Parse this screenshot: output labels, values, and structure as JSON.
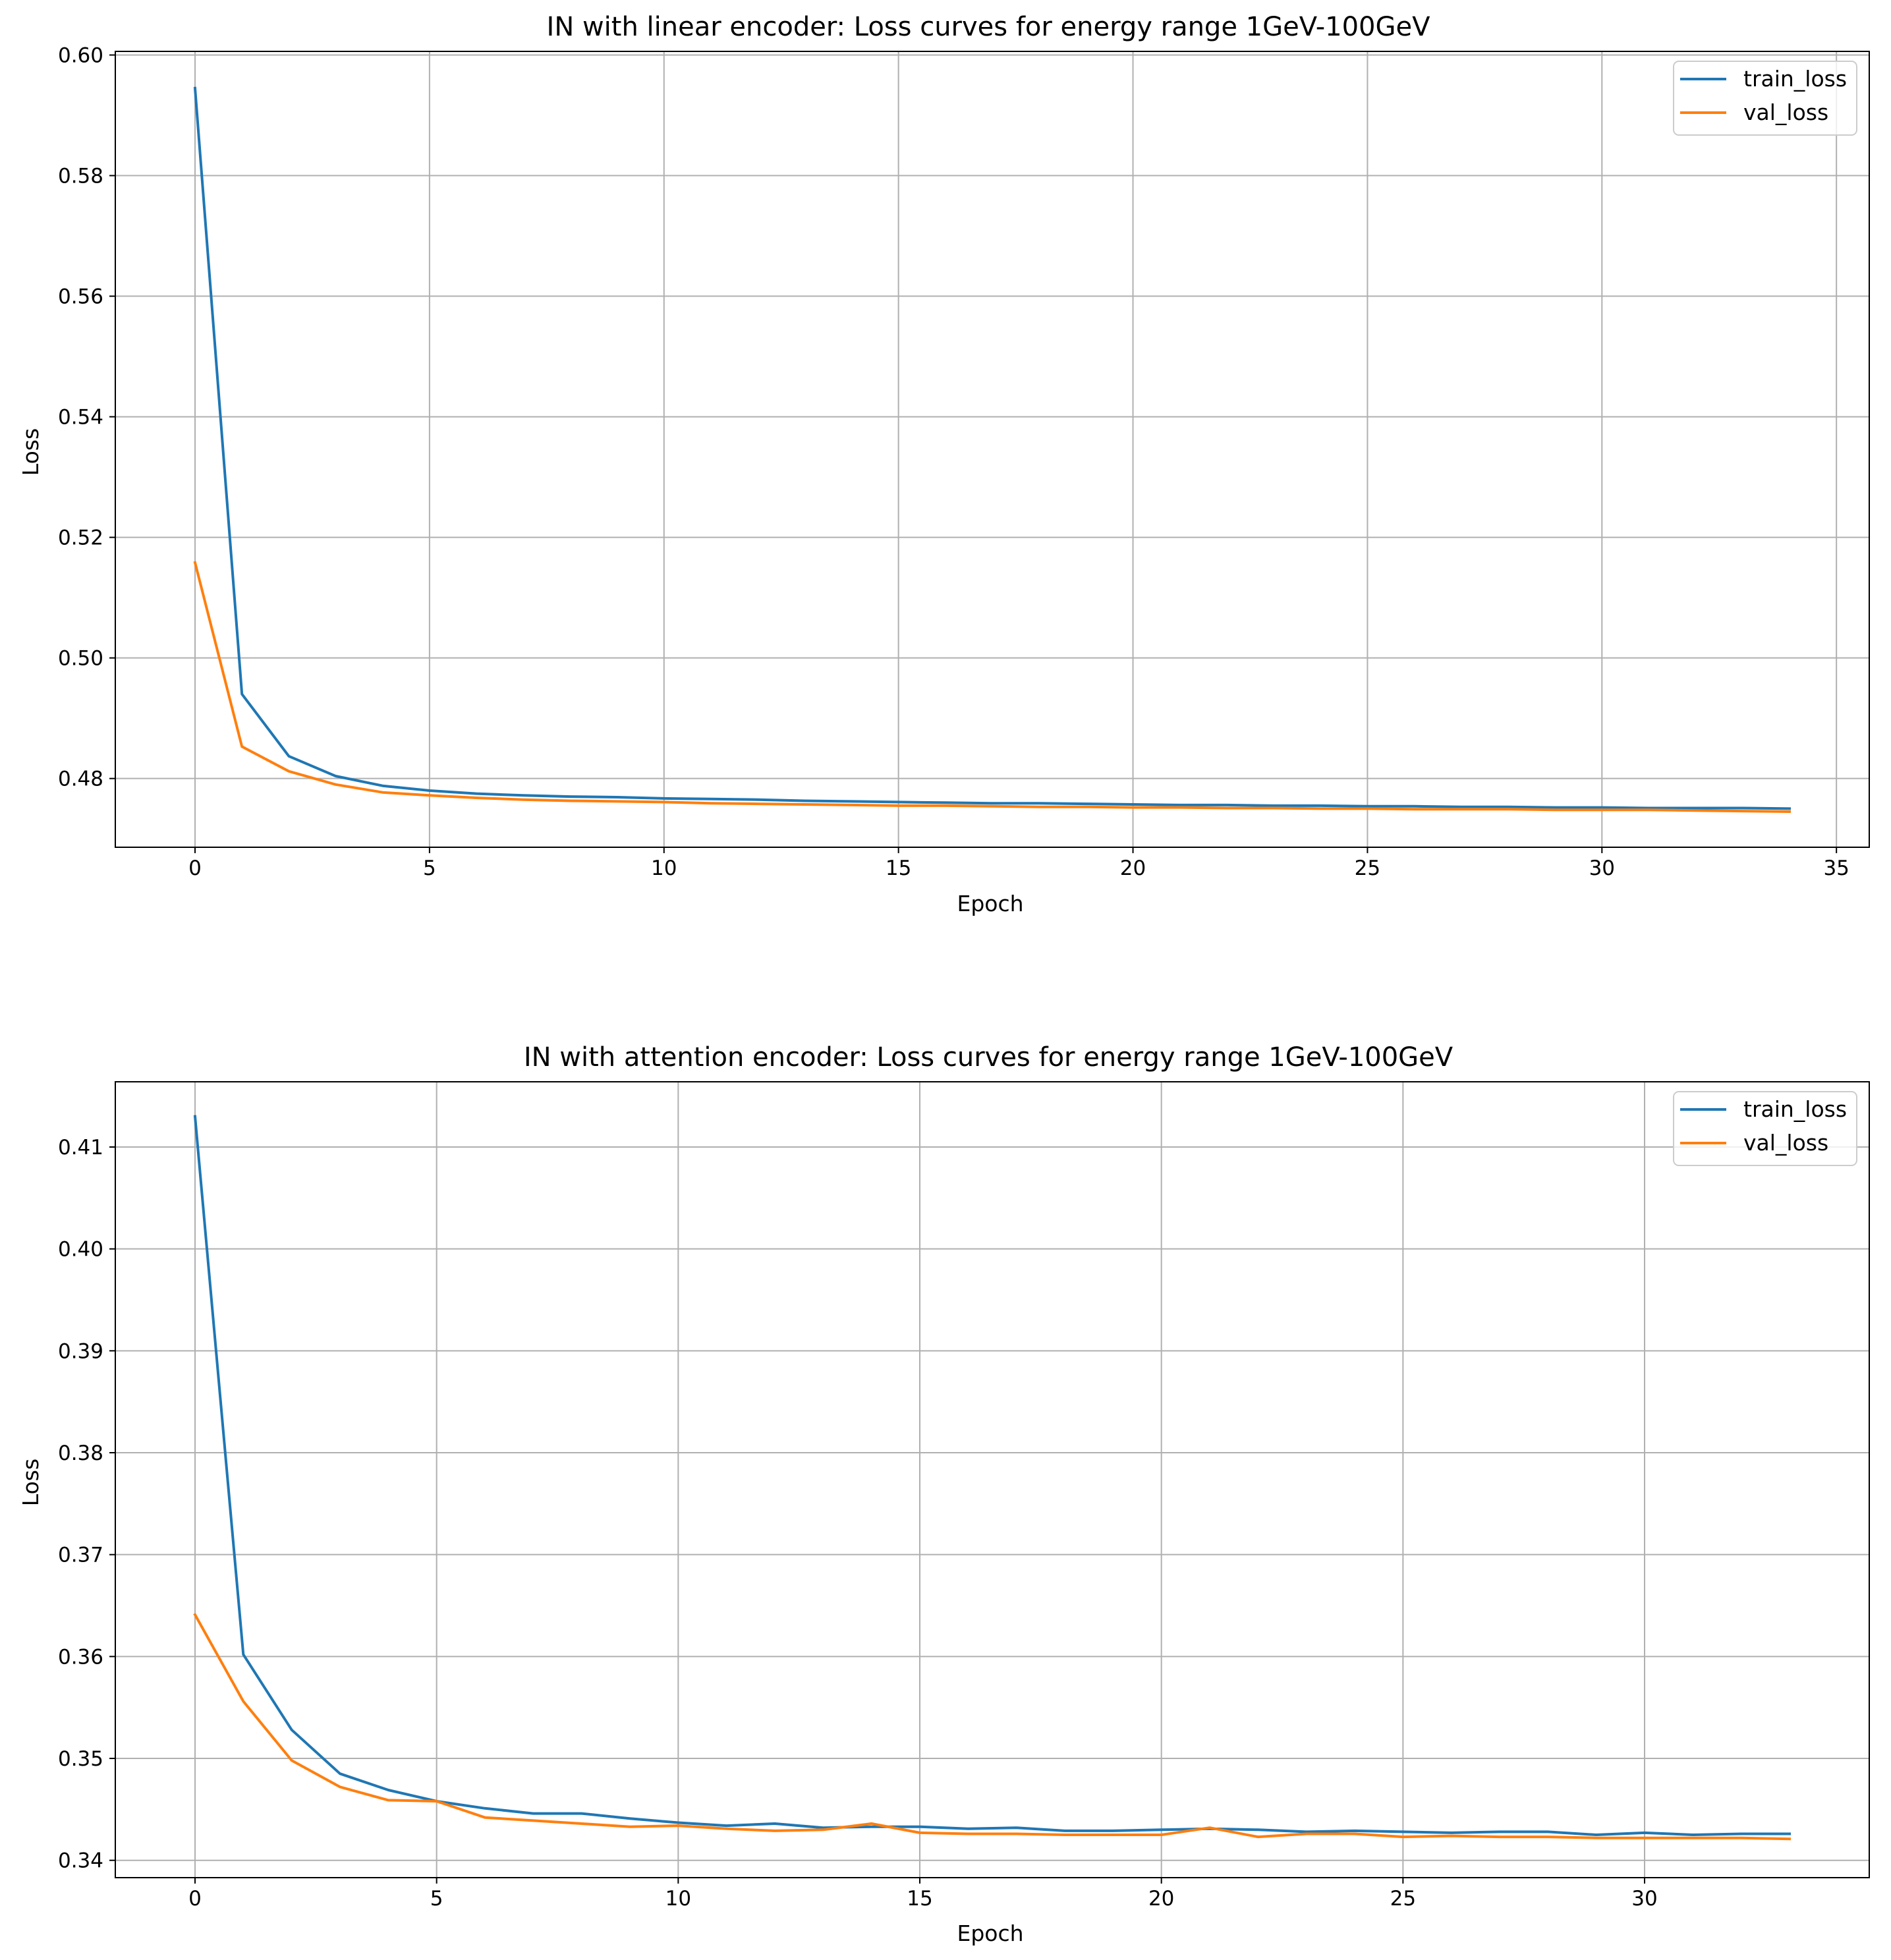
{
  "colors": {
    "train_loss": "#1f77b4",
    "val_loss": "#ff7f0e",
    "grid": "#b0b0b0",
    "legend_border": "#cccccc"
  },
  "chart_data": [
    {
      "type": "line",
      "title": "IN with linear encoder: Loss curves for energy range 1GeV-100GeV",
      "xlabel": "Epoch",
      "ylabel": "Loss",
      "xlim": [
        -1.7,
        35.7
      ],
      "ylim": [
        0.4686,
        0.6006
      ],
      "xticks": [
        0,
        5,
        10,
        15,
        20,
        25,
        30,
        35
      ],
      "xtick_labels": [
        "0",
        "5",
        "10",
        "15",
        "20",
        "25",
        "30",
        "35"
      ],
      "yticks": [
        0.48,
        0.5,
        0.52,
        0.54,
        0.56,
        0.58,
        0.6
      ],
      "ytick_labels": [
        "0.48",
        "0.50",
        "0.52",
        "0.54",
        "0.56",
        "0.58",
        "0.60"
      ],
      "grid": true,
      "legend": "top-right",
      "x": [
        0,
        1,
        2,
        3,
        4,
        5,
        6,
        7,
        8,
        9,
        10,
        11,
        12,
        13,
        14,
        15,
        16,
        17,
        18,
        19,
        20,
        21,
        22,
        23,
        24,
        25,
        26,
        27,
        28,
        29,
        30,
        31,
        32,
        33,
        34
      ],
      "series": [
        {
          "name": "train_loss",
          "values": [
            0.5945,
            0.494,
            0.4837,
            0.4804,
            0.4788,
            0.478,
            0.4775,
            0.4772,
            0.477,
            0.4769,
            0.4767,
            0.4766,
            0.4765,
            0.4763,
            0.4762,
            0.4761,
            0.476,
            0.4759,
            0.4759,
            0.4758,
            0.4757,
            0.4756,
            0.4756,
            0.4755,
            0.4755,
            0.4754,
            0.4754,
            0.4753,
            0.4753,
            0.4752,
            0.4752,
            0.4751,
            0.4751,
            0.4751,
            0.475
          ]
        },
        {
          "name": "val_loss",
          "values": [
            0.5158,
            0.4853,
            0.4812,
            0.479,
            0.4777,
            0.4772,
            0.4768,
            0.4765,
            0.4763,
            0.4762,
            0.4761,
            0.4759,
            0.4758,
            0.4757,
            0.4756,
            0.4755,
            0.4755,
            0.4754,
            0.4753,
            0.4753,
            0.4752,
            0.4752,
            0.4751,
            0.4751,
            0.475,
            0.475,
            0.4749,
            0.4749,
            0.4749,
            0.4748,
            0.4748,
            0.4748,
            0.4747,
            0.4746,
            0.4745
          ]
        }
      ]
    },
    {
      "type": "line",
      "title": "IN with attention encoder: Loss curves for energy range 1GeV-100GeV",
      "xlabel": "Epoch",
      "ylabel": "Loss",
      "xlim": [
        -1.65,
        34.65
      ],
      "ylim": [
        0.3383,
        0.4164
      ],
      "xticks": [
        0,
        5,
        10,
        15,
        20,
        25,
        30
      ],
      "xtick_labels": [
        "0",
        "5",
        "10",
        "15",
        "20",
        "25",
        "30"
      ],
      "yticks": [
        0.34,
        0.35,
        0.36,
        0.37,
        0.38,
        0.39,
        0.4,
        0.41
      ],
      "ytick_labels": [
        "0.34",
        "0.35",
        "0.36",
        "0.37",
        "0.38",
        "0.39",
        "0.40",
        "0.41"
      ],
      "grid": true,
      "legend": "top-right",
      "x": [
        0,
        1,
        2,
        3,
        4,
        5,
        6,
        7,
        8,
        9,
        10,
        11,
        12,
        13,
        14,
        15,
        16,
        17,
        18,
        19,
        20,
        21,
        22,
        23,
        24,
        25,
        26,
        27,
        28,
        29,
        30,
        31,
        32,
        33
      ],
      "series": [
        {
          "name": "train_loss",
          "values": [
            0.413,
            0.3602,
            0.3528,
            0.3485,
            0.3469,
            0.3458,
            0.3451,
            0.3446,
            0.3446,
            0.3441,
            0.3437,
            0.3434,
            0.3436,
            0.3432,
            0.3433,
            0.3433,
            0.3431,
            0.3432,
            0.3429,
            0.3429,
            0.343,
            0.3431,
            0.343,
            0.3428,
            0.3429,
            0.3428,
            0.3427,
            0.3428,
            0.3428,
            0.3425,
            0.3427,
            0.3425,
            0.3426,
            0.3426
          ]
        },
        {
          "name": "val_loss",
          "values": [
            0.3641,
            0.3556,
            0.3498,
            0.3472,
            0.3459,
            0.3458,
            0.3442,
            0.3439,
            0.3436,
            0.3433,
            0.3434,
            0.3431,
            0.3429,
            0.343,
            0.3436,
            0.3427,
            0.3426,
            0.3426,
            0.3425,
            0.3425,
            0.3425,
            0.3432,
            0.3423,
            0.3426,
            0.3426,
            0.3423,
            0.3424,
            0.3423,
            0.3423,
            0.3422,
            0.3422,
            0.3422,
            0.3422,
            0.3421
          ]
        }
      ]
    }
  ]
}
